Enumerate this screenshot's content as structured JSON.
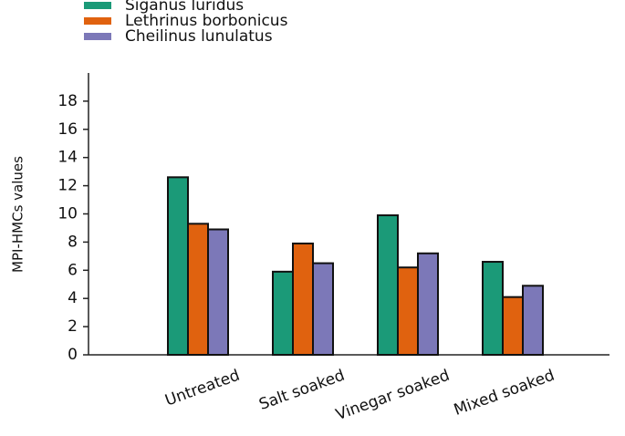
{
  "chart_data": {
    "type": "bar",
    "y_label": "MPI-HMCs values",
    "categories": [
      "Untreated",
      "Salt soaked",
      "Vinegar soaked",
      "Mixed soaked"
    ],
    "series": [
      {
        "name": "Siganus luridus",
        "color": "#1b9a78",
        "values": [
          12.6,
          5.9,
          9.9,
          6.6
        ]
      },
      {
        "name": "Lethrinus borbonicus",
        "color": "#e0620f",
        "values": [
          9.3,
          7.9,
          6.2,
          4.1
        ]
      },
      {
        "name": "Cheilinus lunulatus",
        "color": "#7c78b8",
        "values": [
          8.9,
          6.5,
          7.2,
          4.9
        ]
      }
    ],
    "ylim": [
      0,
      20
    ],
    "yticks": [
      0,
      2,
      4,
      6,
      8,
      10,
      12,
      14,
      16,
      18
    ]
  }
}
